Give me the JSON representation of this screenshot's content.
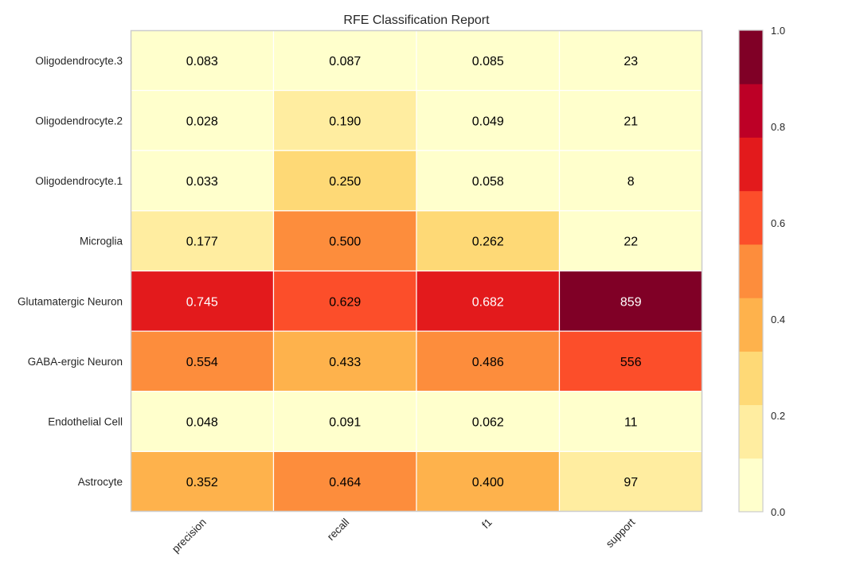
{
  "chart_data": {
    "type": "heatmap",
    "title": "RFE Classification Report",
    "xlabel": "",
    "ylabel": "",
    "columns": [
      "precision",
      "recall",
      "f1",
      "support"
    ],
    "rows": [
      "Oligodendrocyte.3",
      "Oligodendrocyte.2",
      "Oligodendrocyte.1",
      "Microglia",
      "Glutamatergic Neuron",
      "GABA-ergic Neuron",
      "Endothelial Cell",
      "Astrocyte"
    ],
    "values": [
      [
        0.083,
        0.087,
        0.085,
        23
      ],
      [
        0.028,
        0.19,
        0.049,
        21
      ],
      [
        0.033,
        0.25,
        0.058,
        8
      ],
      [
        0.177,
        0.5,
        0.262,
        22
      ],
      [
        0.745,
        0.629,
        0.682,
        859
      ],
      [
        0.554,
        0.433,
        0.486,
        556
      ],
      [
        0.048,
        0.091,
        0.062,
        11
      ],
      [
        0.352,
        0.464,
        0.4,
        97
      ]
    ],
    "cell_labels": [
      [
        "0.083",
        "0.087",
        "0.085",
        "23"
      ],
      [
        "0.028",
        "0.190",
        "0.049",
        "21"
      ],
      [
        "0.033",
        "0.250",
        "0.058",
        "8"
      ],
      [
        "0.177",
        "0.500",
        "0.262",
        "22"
      ],
      [
        "0.745",
        "0.629",
        "0.682",
        "859"
      ],
      [
        "0.554",
        "0.433",
        "0.486",
        "556"
      ],
      [
        "0.048",
        "0.091",
        "0.062",
        "11"
      ],
      [
        "0.352",
        "0.464",
        "0.400",
        "97"
      ]
    ],
    "support_scaled_values": [
      0.027,
      0.024,
      0.009,
      0.026,
      1.0,
      0.647,
      0.013,
      0.113
    ],
    "colorbar": {
      "range": [
        0,
        1
      ],
      "ticks": [
        "0.0",
        "0.2",
        "0.4",
        "0.6",
        "0.8",
        "1.0"
      ],
      "colors": [
        "#ffffcc",
        "#ffeda0",
        "#fed976",
        "#feb24c",
        "#fd8d3c",
        "#fc4e2a",
        "#e31a1c",
        "#bd0026",
        "#800026"
      ]
    }
  }
}
